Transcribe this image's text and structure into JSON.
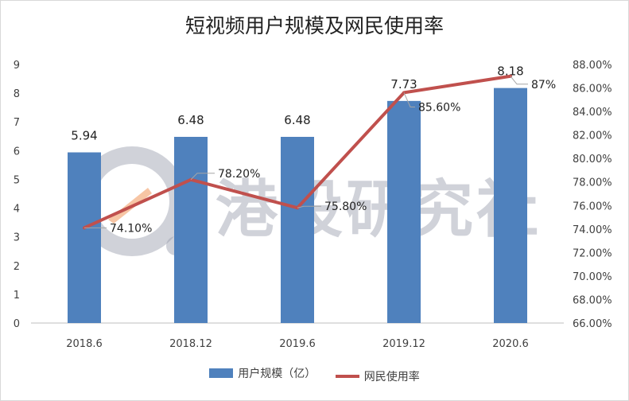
{
  "chart_data": {
    "type": "bar+line",
    "title": "短视频用户规模及网民使用率",
    "categories": [
      "2018.6",
      "2018.12",
      "2019.6",
      "2019.12",
      "2020.6"
    ],
    "series": [
      {
        "name": "用户规模（亿）",
        "type": "bar",
        "axis": "left",
        "values": [
          5.94,
          6.48,
          6.48,
          7.73,
          8.18
        ],
        "labels": [
          "5.94",
          "6.48",
          "6.48",
          "7.73",
          "8.18"
        ]
      },
      {
        "name": "网民使用率",
        "type": "line",
        "axis": "right",
        "values": [
          74.1,
          78.2,
          75.8,
          85.6,
          87.0
        ],
        "labels": [
          "74.10%",
          "78.20%",
          "75.80%",
          "85.60%",
          "87%"
        ]
      }
    ],
    "y_left": {
      "min": 0,
      "max": 9,
      "step": 1,
      "ticks": [
        "0",
        "1",
        "2",
        "3",
        "4",
        "5",
        "6",
        "7",
        "8",
        "9"
      ]
    },
    "y_right": {
      "min": 66,
      "max": 88,
      "step": 2,
      "ticks": [
        "66.00%",
        "68.00%",
        "70.00%",
        "72.00%",
        "74.00%",
        "76.00%",
        "78.00%",
        "80.00%",
        "82.00%",
        "84.00%",
        "86.00%",
        "88.00%"
      ]
    },
    "grid": false,
    "legend": "bottom",
    "colors": {
      "bar": "#4f81bd",
      "line": "#c0504d"
    }
  },
  "watermark": {
    "text": "港股研究社"
  }
}
